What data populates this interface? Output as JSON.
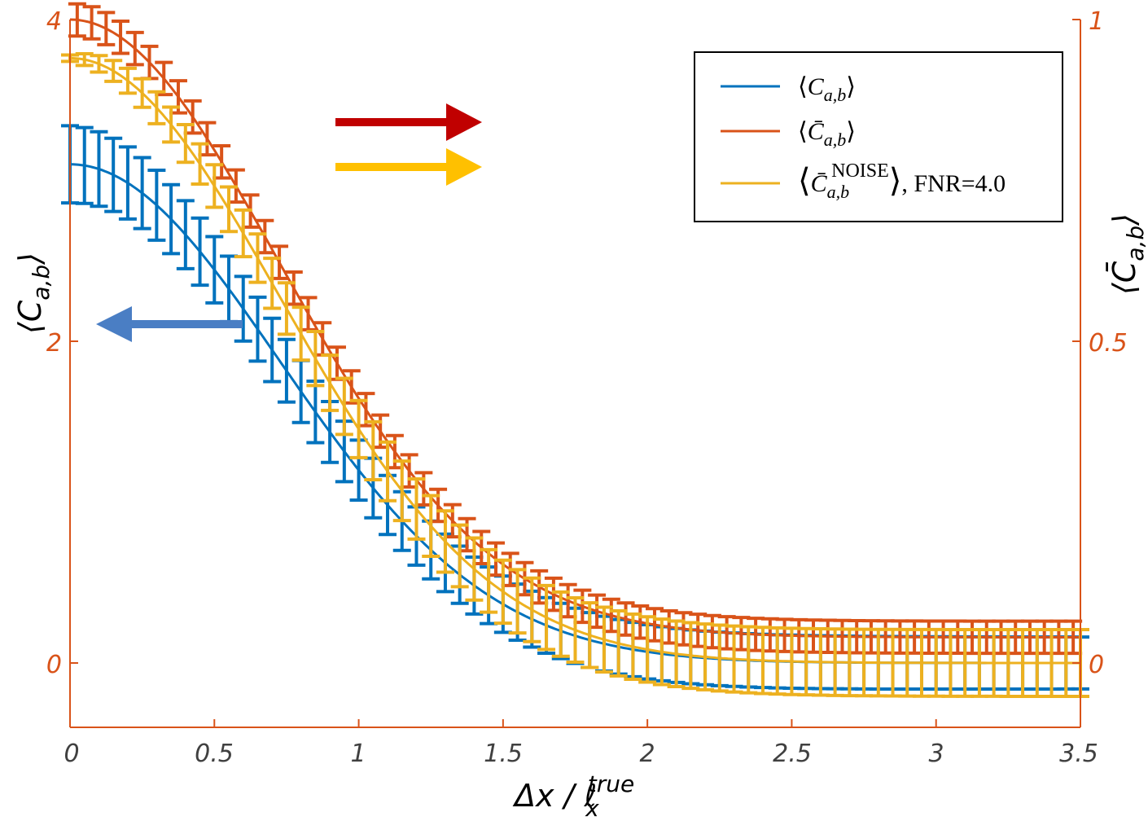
{
  "chart_data": {
    "type": "line",
    "xlim": [
      0,
      3.5
    ],
    "ylim_left": [
      -0.4,
      4.0
    ],
    "ylim_right": [
      -0.1,
      1.0
    ],
    "x_ticks": [
      "0",
      "0.5",
      "1",
      "1.5",
      "2",
      "2.5",
      "3",
      "3.5"
    ],
    "y_left_ticks": [
      "0",
      "2",
      "4"
    ],
    "y_right_ticks": [
      "0",
      "0.5",
      "1"
    ],
    "xlabel": "Δx / ℓ",
    "xlabel_sub": "x",
    "xlabel_sup": "true",
    "ylabel_left": "⟨C",
    "ylabel_left_sub": "a,b",
    "ylabel_left_close": "⟩",
    "ylabel_right": "⟨C̄",
    "ylabel_right_sub": "a,b",
    "ylabel_right_close": "⟩",
    "colors": {
      "axis": "#D95319",
      "blue": "#0072BD",
      "orange": "#D95319",
      "yellow": "#EDB120",
      "arrow_red": "#C00000",
      "arrow_yellow": "#FFC000",
      "arrow_blue": "#4A7EC4"
    },
    "series": [
      {
        "name": "C",
        "name_sub": "a,b",
        "axis": "left",
        "color": "#0072BD",
        "sigma": 1.0,
        "amplitude": 3.1,
        "offset": 0,
        "err_max": 0.24,
        "err_min": 0.16,
        "err_decay": 0.9,
        "x_start": 0,
        "x_end": 3.5,
        "x_step": 0.05
      },
      {
        "name": "C̄",
        "name_sub": "a,b",
        "axis": "right",
        "color": "#D95319",
        "sigma": 1.0,
        "amplitude": 0.96,
        "offset": 0.04,
        "err_max": 0.025,
        "err_min": 0.025,
        "err_decay": 1.0,
        "x_start": 0.025,
        "x_end": 3.5,
        "x_step": 0.05
      },
      {
        "name": "C̄",
        "name_sub": "a,b",
        "name_sup": "NOISE",
        "suffix": ", FNR=4.0",
        "axis": "right",
        "color": "#EDB120",
        "sigma": 1.0,
        "amplitude": 0.94,
        "offset": 0.0,
        "err_max": 0.005,
        "err_min": 0.052,
        "err_decay": 0.55,
        "x_start": 0,
        "x_end": 3.5,
        "x_step": 0.05
      }
    ]
  }
}
